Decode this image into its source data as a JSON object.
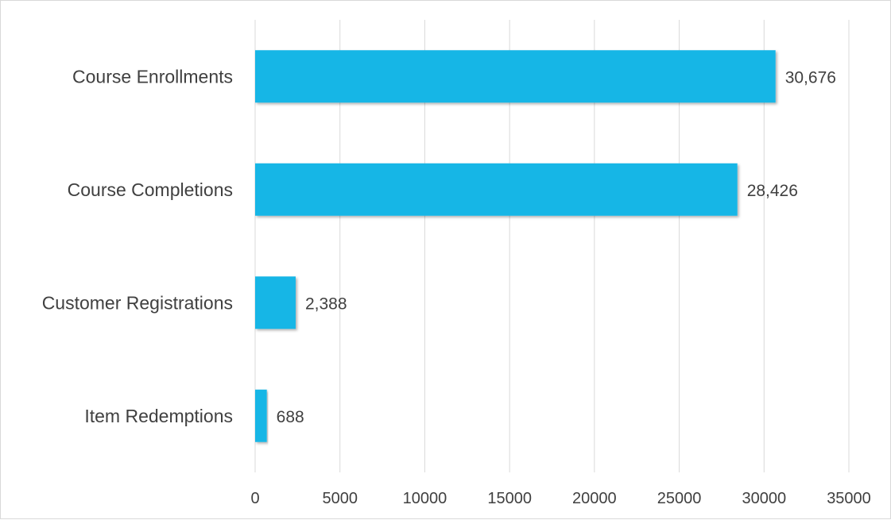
{
  "chart_data": {
    "type": "bar",
    "orientation": "horizontal",
    "categories": [
      "Course Enrollments",
      "Course Completions",
      "Customer Registrations",
      "Item Redemptions"
    ],
    "values": [
      30676,
      28426,
      2388,
      688
    ],
    "data_labels": [
      "30,676",
      "28,426",
      "2,388",
      "688"
    ],
    "xlim": [
      0,
      35000
    ],
    "xticks": [
      0,
      5000,
      10000,
      15000,
      20000,
      25000,
      30000,
      35000
    ],
    "xtick_labels": [
      "0",
      "5000",
      "10000",
      "15000",
      "20000",
      "25000",
      "30000",
      "35000"
    ],
    "grid": true,
    "legend": "none",
    "bar_color": "#17b6e6"
  }
}
